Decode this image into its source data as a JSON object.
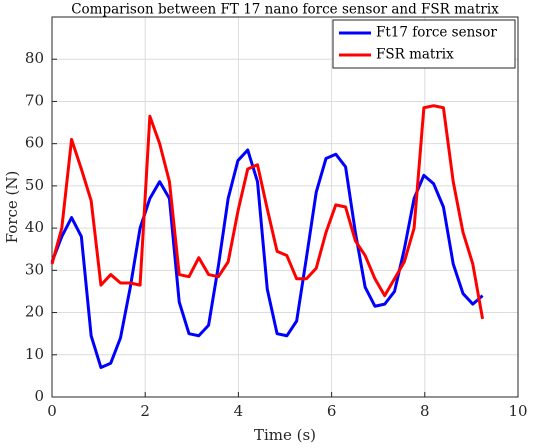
{
  "chart_data": {
    "type": "line",
    "title": "Comparison between FT 17 nano force sensor and FSR matrix",
    "x_label": "Time (s)",
    "y_label": "Force (N)",
    "x": [
      0,
      0.21,
      0.42,
      0.63,
      0.84,
      1.05,
      1.26,
      1.47,
      1.68,
      1.89,
      2.1,
      2.31,
      2.52,
      2.73,
      2.94,
      3.15,
      3.36,
      3.57,
      3.78,
      3.99,
      4.2,
      4.41,
      4.62,
      4.83,
      5.04,
      5.25,
      5.46,
      5.67,
      5.88,
      6.09,
      6.3,
      6.51,
      6.72,
      6.93,
      7.14,
      7.35,
      7.56,
      7.77,
      7.98,
      8.19,
      8.4,
      8.61,
      8.82,
      9.03,
      9.24
    ],
    "series": [
      {
        "name": "Ft17 force sensor",
        "color": "#0000ff",
        "values": [
          32,
          38,
          42.5,
          38,
          14.5,
          7,
          8,
          14,
          26,
          40,
          47,
          51,
          47,
          22.5,
          15,
          14.5,
          17,
          31,
          47,
          56,
          58.5,
          51,
          25.5,
          15,
          14.5,
          18,
          33,
          48.5,
          56.5,
          57.5,
          54.5,
          39,
          26,
          21.5,
          22,
          25,
          35,
          47,
          52.5,
          50.5,
          45,
          31.5,
          24.5,
          22,
          24
        ]
      },
      {
        "name": "FSR matrix",
        "color": "#ff0000",
        "values": [
          31.5,
          40,
          61,
          54,
          46.5,
          26.5,
          29,
          27,
          27,
          26.5,
          66.5,
          60,
          51,
          29,
          28.5,
          33,
          29,
          28.5,
          32,
          44,
          54,
          55,
          44.5,
          34.5,
          33.5,
          28,
          28,
          30.5,
          39,
          45.5,
          45,
          37,
          33.5,
          28,
          24,
          28,
          32,
          40,
          68.5,
          69,
          68.5,
          51,
          39,
          31.5,
          18.5
        ]
      }
    ],
    "xlim": [
      0,
      10
    ],
    "xticks": [
      0,
      2,
      4,
      6,
      8,
      10
    ],
    "ylim": [
      0,
      90
    ],
    "yticks": [
      0,
      10,
      20,
      30,
      40,
      50,
      60,
      70,
      80
    ],
    "grid": true,
    "legend": "top-right"
  }
}
